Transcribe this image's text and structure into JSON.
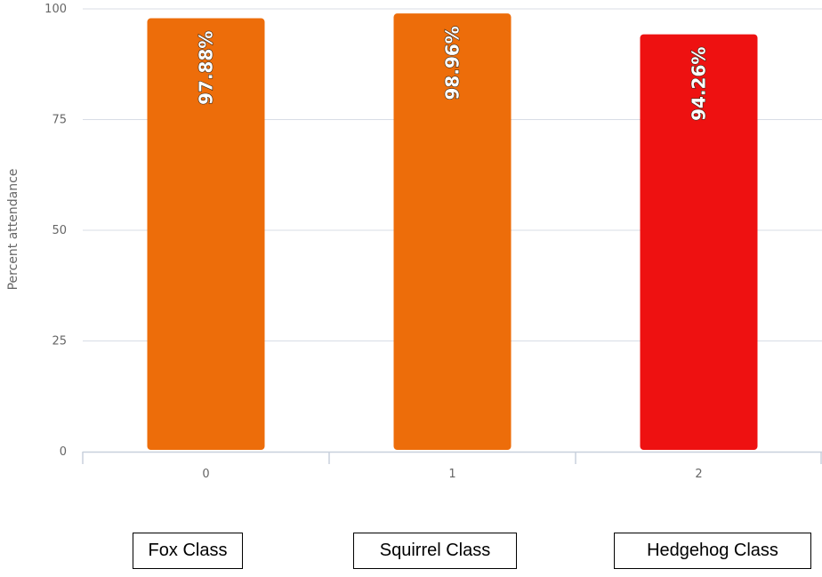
{
  "chart_data": {
    "type": "bar",
    "categories": [
      "0",
      "1",
      "2"
    ],
    "values": [
      97.88,
      98.96,
      94.26
    ],
    "data_labels": [
      "97.88%",
      "98.96%",
      "94.26%"
    ],
    "bar_colors": [
      "#ed6d0a",
      "#ed6d0a",
      "#ee1111"
    ],
    "ylabel": "Percent attendance",
    "xlabel": "",
    "ylim": [
      0,
      100
    ],
    "yticks": [
      "0",
      "25",
      "50",
      "75",
      "100"
    ],
    "grid": true
  },
  "class_labels": [
    "Fox Class",
    "Squirrel Class",
    "Hedgehog Class"
  ],
  "colors": {
    "grid": "#d8dde6",
    "axis": "#c8d0dc",
    "tick_text": "#666666"
  }
}
